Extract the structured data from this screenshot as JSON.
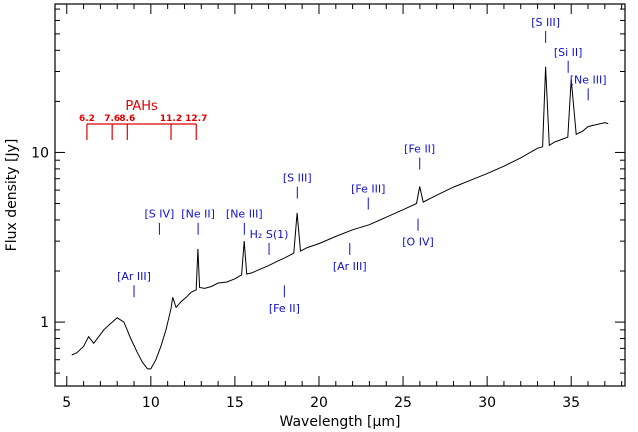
{
  "chart_data": {
    "type": "line",
    "xlabel": "Wavelength [µm]",
    "ylabel": "Flux density [Jy]",
    "xlim": [
      4.3,
      38.2
    ],
    "ylim": [
      0.42,
      75
    ],
    "yscale": "log",
    "x_ticks": [
      5,
      10,
      15,
      20,
      25,
      30,
      35
    ],
    "y_ticks": [
      1,
      10
    ],
    "colors": {
      "spectrum": "#000000",
      "lines": "#1010d0",
      "pah": "#e00000"
    },
    "series": [
      {
        "x": [
          5.3,
          5.6,
          6.0,
          6.3,
          6.6,
          6.9,
          7.2,
          7.6,
          8.0,
          8.4,
          8.8,
          9.2,
          9.5,
          9.8,
          10.0,
          10.3,
          10.6,
          10.9,
          11.2,
          11.3,
          11.5,
          11.8,
          12.1,
          12.4,
          12.7,
          12.8,
          12.9,
          13.2,
          13.6,
          14.0,
          14.5,
          15.0,
          15.4,
          15.55,
          15.7,
          16.0,
          16.5,
          17.0,
          17.5,
          18.0,
          18.5,
          18.7,
          18.9,
          19.3,
          20.0,
          21.0,
          22.0,
          23.0,
          24.0,
          25.0,
          25.8,
          25.99,
          26.2,
          27.0,
          28.0,
          29.0,
          30.0,
          31.0,
          32.0,
          33.0,
          33.3,
          33.48,
          33.7,
          34.0,
          34.5,
          34.8,
          35.0,
          35.3,
          35.7,
          36.0,
          36.5,
          37.0,
          37.2
        ],
        "y": [
          0.64,
          0.66,
          0.72,
          0.82,
          0.75,
          0.82,
          0.9,
          0.98,
          1.06,
          1.0,
          0.8,
          0.66,
          0.58,
          0.53,
          0.53,
          0.6,
          0.72,
          0.9,
          1.2,
          1.4,
          1.22,
          1.32,
          1.4,
          1.5,
          1.55,
          2.7,
          1.6,
          1.58,
          1.62,
          1.7,
          1.72,
          1.8,
          1.9,
          3.0,
          1.92,
          1.95,
          2.05,
          2.15,
          2.28,
          2.4,
          2.55,
          4.4,
          2.62,
          2.75,
          2.9,
          3.2,
          3.5,
          3.75,
          4.15,
          4.6,
          5.0,
          6.3,
          5.1,
          5.6,
          6.25,
          6.85,
          7.5,
          8.3,
          9.3,
          10.6,
          10.8,
          32.0,
          11.0,
          11.5,
          12.0,
          12.3,
          27.0,
          12.8,
          13.4,
          14.2,
          14.6,
          15.0,
          14.8
        ]
      }
    ],
    "annotations": [
      {
        "text": "[Ar III]",
        "x": 9.0,
        "y": 1.52,
        "side": "above"
      },
      {
        "text": "[S IV]",
        "x": 10.51,
        "y": 3.55,
        "side": "above"
      },
      {
        "text": "[Ne II]",
        "x": 12.81,
        "y": 3.55,
        "side": "above"
      },
      {
        "text": "[Ne III]",
        "x": 15.56,
        "y": 3.55,
        "side": "above"
      },
      {
        "text": "H₂ S(1)",
        "x": 17.03,
        "y": 2.7,
        "side": "above"
      },
      {
        "text": "[Fe II]",
        "x": 17.94,
        "y": 1.52,
        "side": "below"
      },
      {
        "text": "[S III]",
        "x": 18.71,
        "y": 5.8,
        "side": "above"
      },
      {
        "text": "[Ar III]",
        "x": 21.83,
        "y": 2.7,
        "side": "below"
      },
      {
        "text": "[Fe III]",
        "x": 22.93,
        "y": 5.0,
        "side": "above"
      },
      {
        "text": "[Fe II]",
        "x": 25.99,
        "y": 8.6,
        "side": "above"
      },
      {
        "text": "[O IV]",
        "x": 25.89,
        "y": 3.75,
        "side": "below"
      },
      {
        "text": "[S III]",
        "x": 33.48,
        "y": 48.0,
        "side": "above"
      },
      {
        "text": "[Si II]",
        "x": 34.82,
        "y": 32.0,
        "side": "above"
      },
      {
        "text": "[Ne III]",
        "x": 36.01,
        "y": 22.0,
        "side": "above"
      }
    ],
    "pah_group": {
      "title": "PAHs",
      "bands": [
        {
          "label": "6.2",
          "x": 6.2
        },
        {
          "label": "7.6",
          "x": 7.7
        },
        {
          "label": "8.6",
          "x": 8.6
        },
        {
          "label": "11.2",
          "x": 11.2
        },
        {
          "label": "12.7",
          "x": 12.7
        }
      ]
    }
  }
}
